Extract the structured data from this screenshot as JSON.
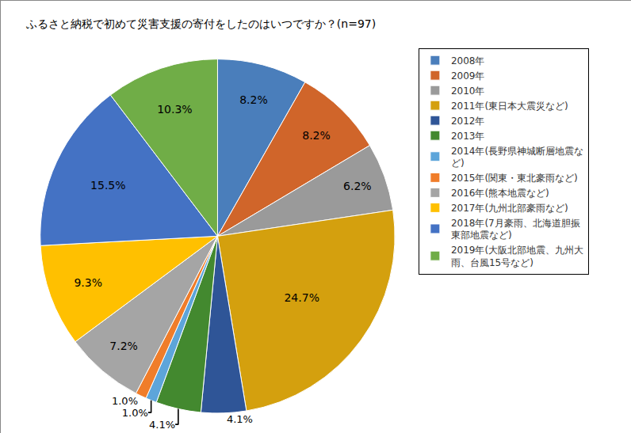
{
  "chart_data": {
    "type": "pie",
    "title": "ふるさと納税で初めて災害支援の寄付をしたのはいつですか？(n=97)",
    "categories": [
      "2008年",
      "2009年",
      "2010年",
      "2011年(東日本大震災など)",
      "2012年",
      "2013年",
      "2014年(長野県神城断層地震など)",
      "2015年(関東・東北豪雨など)",
      "2016年(熊本地震など)",
      "2017年(九州北部豪雨など)",
      "2018年(7月豪雨、北海道胆振東部地震など)",
      "2019年(大阪北部地震、九州大雨、台風15号など)"
    ],
    "values": [
      8.2,
      8.2,
      6.2,
      24.7,
      4.1,
      4.1,
      1.0,
      1.0,
      7.2,
      9.3,
      15.5,
      10.3
    ],
    "value_labels": [
      "8.2%",
      "8.2%",
      "6.2%",
      "24.7%",
      "4.1%",
      "4.1%",
      "1.0%",
      "1.0%",
      "7.2%",
      "9.3%",
      "15.5%",
      "10.3%"
    ],
    "colors": [
      "#4A7EBB",
      "#D0652A",
      "#9A9A9A",
      "#D4A00E",
      "#2F5597",
      "#43892F",
      "#5DA5DA",
      "#F07D2A",
      "#A5A5A5",
      "#FFC000",
      "#4472C4",
      "#70AD47"
    ],
    "data_labels": true,
    "legend": "right"
  }
}
